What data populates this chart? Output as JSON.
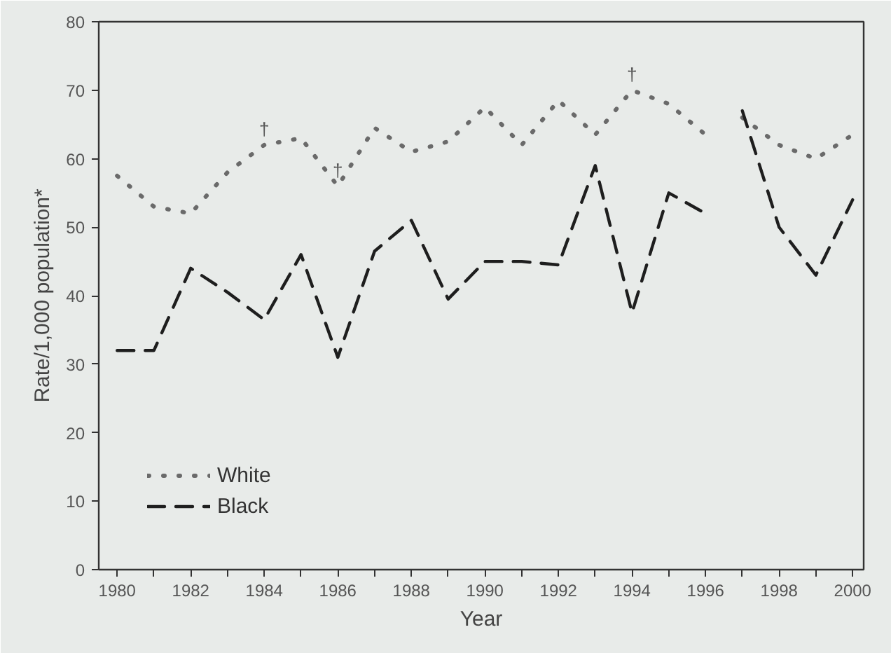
{
  "chart_data": {
    "type": "line",
    "xlabel": "Year",
    "ylabel": "Rate/1,000 population*",
    "x": [
      1980,
      1981,
      1982,
      1983,
      1984,
      1985,
      1986,
      1987,
      1988,
      1989,
      1990,
      1991,
      1992,
      1993,
      1994,
      1995,
      1996,
      1996.5,
      1997,
      1998,
      1999,
      2000
    ],
    "series": [
      {
        "name": "White",
        "color": "#6a6a6a",
        "line_style": "dotted",
        "values": [
          57.5,
          53,
          52,
          58,
          62,
          63,
          56,
          64.5,
          61,
          62.5,
          67.5,
          62,
          68.5,
          63.5,
          70,
          68,
          63.5,
          null,
          66,
          62,
          60,
          63.5
        ]
      },
      {
        "name": "Black",
        "color": "#1e1e1e",
        "line_style": "dashed",
        "values": [
          32,
          32,
          44,
          40.5,
          36.5,
          46,
          31,
          46.5,
          51,
          39.5,
          45,
          45,
          44.5,
          59,
          37.5,
          55,
          52,
          null,
          67,
          50,
          43,
          54
        ]
      }
    ],
    "annotations": [
      {
        "text": "†",
        "x": 1984,
        "y": 62
      },
      {
        "text": "†",
        "x": 1986,
        "y": 56
      },
      {
        "text": "†",
        "x": 1994,
        "y": 70
      }
    ],
    "xlim": [
      1979.5,
      2000.3
    ],
    "xticks": [
      1980,
      {
        "value": 1981,
        "label": null
      },
      1982,
      {
        "value": 1983,
        "label": null
      },
      1984,
      {
        "value": 1985,
        "label": null
      },
      1986,
      {
        "value": 1987,
        "label": null
      },
      1988,
      {
        "value": 1989,
        "label": null
      },
      1990,
      {
        "value": 1991,
        "label": null
      },
      1992,
      {
        "value": 1993,
        "label": null
      },
      1994,
      {
        "value": 1995,
        "label": null
      },
      1996,
      {
        "value": 1997,
        "label": null
      },
      1998,
      {
        "value": 1999,
        "label": null
      },
      2000
    ],
    "ylim": [
      0,
      80
    ],
    "yticks": [
      0,
      10,
      20,
      30,
      40,
      50,
      60,
      70,
      80
    ],
    "grid": false,
    "legend": "bottom left",
    "marker": "none"
  }
}
